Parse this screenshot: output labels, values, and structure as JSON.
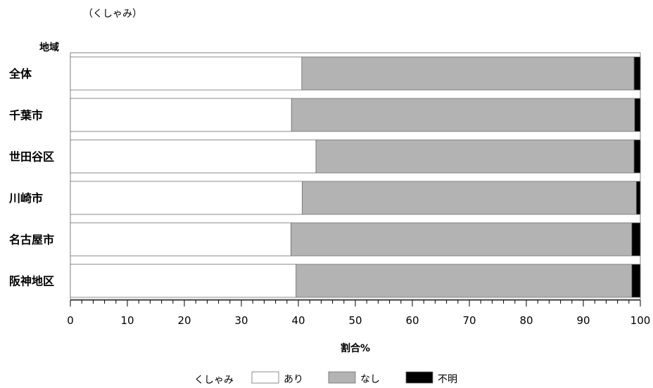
{
  "chart_data": {
    "type": "bar",
    "orientation": "horizontal",
    "stacked": true,
    "title": "（くしゃみ）",
    "category_axis_label": "地域",
    "xlabel": "割合%",
    "xlim": [
      0,
      100
    ],
    "x_ticks": [
      "0",
      "10",
      "20",
      "30",
      "40",
      "50",
      "60",
      "70",
      "80",
      "90",
      "100"
    ],
    "categories": [
      "全体",
      "千葉市",
      "世田谷区",
      "川崎市",
      "名古屋市",
      "阪神地区"
    ],
    "legend_title": "くしゃみ",
    "legend_position": "bottom",
    "series": [
      {
        "name": "あり",
        "color": "#ffffff",
        "values": [
          40.6,
          38.8,
          43.1,
          40.7,
          38.7,
          39.6
        ]
      },
      {
        "name": "なし",
        "color": "#b3b3b3",
        "values": [
          58.3,
          60.2,
          55.8,
          58.6,
          59.8,
          58.9
        ]
      },
      {
        "name": "不明",
        "color": "#000000",
        "values": [
          1.1,
          1.0,
          1.1,
          0.7,
          1.5,
          1.5
        ]
      }
    ],
    "grid": false
  }
}
